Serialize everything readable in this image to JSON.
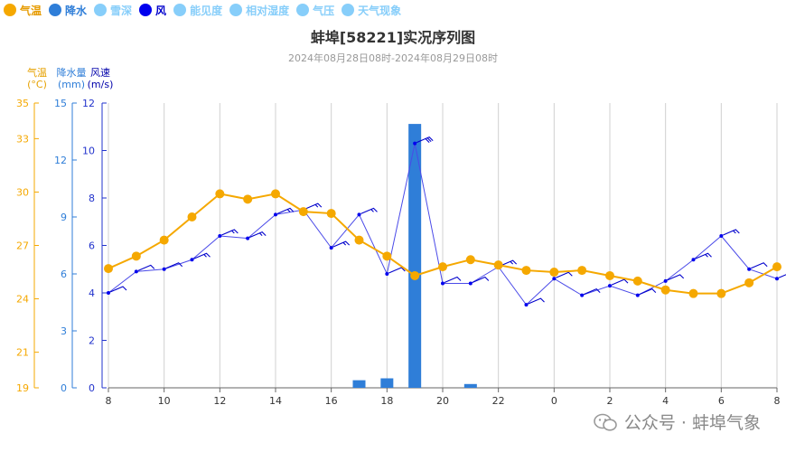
{
  "legend": [
    {
      "label": "气温",
      "color": "#f5a800",
      "active": true
    },
    {
      "label": "降水",
      "color": "#2f7ed8",
      "active": true
    },
    {
      "label": "雪深",
      "color": "#87cefa",
      "active": false
    },
    {
      "label": "风",
      "color": "#0000ee",
      "active": true
    },
    {
      "label": "能见度",
      "color": "#87cefa",
      "active": false
    },
    {
      "label": "相对湿度",
      "color": "#87cefa",
      "active": false
    },
    {
      "label": "气压",
      "color": "#87cefa",
      "active": false
    },
    {
      "label": "天气现象",
      "color": "#87cefa",
      "active": false
    }
  ],
  "watermark": "公众号 · 蚌埠气象",
  "chart_data": {
    "type": "line",
    "title": "蚌埠[58221]实况序列图",
    "subtitle": "2024年08月28日08时-2024年08月29日08时",
    "x_tick_labels": [
      "8",
      "10",
      "12",
      "14",
      "16",
      "18",
      "20",
      "22",
      "0",
      "2",
      "4",
      "6",
      "8"
    ],
    "hours": [
      "8",
      "9",
      "10",
      "11",
      "12",
      "13",
      "14",
      "15",
      "16",
      "17",
      "18",
      "19",
      "20",
      "21",
      "22",
      "23",
      "0",
      "1",
      "2",
      "3",
      "4",
      "5",
      "6",
      "7",
      "8"
    ],
    "temp_axis": {
      "title_line1": "气温",
      "title_line2": "(°C)",
      "ticks": [
        19,
        21,
        24,
        27,
        30,
        33,
        35
      ],
      "ylim": [
        19,
        35
      ]
    },
    "precip_axis": {
      "title_line1": "降水量",
      "title_line2": "(mm)",
      "ticks": [
        0,
        3,
        6,
        9,
        12,
        15
      ],
      "ylim": [
        0,
        15
      ]
    },
    "wind_axis": {
      "title_line1": "风速",
      "title_line2": "(m/s)",
      "ticks": [
        0,
        2,
        4,
        6,
        8,
        10,
        12
      ],
      "ylim": [
        0,
        12
      ]
    },
    "series": [
      {
        "name": "气温",
        "color": "#f5a800",
        "values": [
          25.7,
          26.4,
          27.3,
          28.6,
          29.9,
          29.6,
          29.9,
          28.9,
          28.8,
          27.3,
          26.4,
          25.3,
          25.8,
          26.2,
          25.9,
          25.6,
          25.5,
          25.6,
          25.3,
          25.0,
          24.5,
          24.3,
          24.3,
          24.9,
          25.8
        ]
      },
      {
        "name": "降水",
        "color": "#2f7ed8",
        "values": [
          0,
          0,
          0,
          0,
          0,
          0,
          0,
          0,
          0,
          0.4,
          0.5,
          13.9,
          0,
          0.2,
          0,
          0,
          0,
          0,
          0,
          0,
          0,
          0,
          0,
          0,
          0
        ]
      },
      {
        "name": "风",
        "color": "#0000ee",
        "values": [
          4.0,
          4.9,
          5.0,
          5.4,
          6.4,
          6.3,
          7.3,
          7.5,
          5.9,
          7.3,
          4.8,
          10.3,
          4.4,
          4.4,
          5.1,
          3.5,
          4.6,
          3.9,
          4.3,
          3.9,
          4.5,
          5.4,
          6.4,
          5.0,
          4.6
        ]
      }
    ]
  }
}
